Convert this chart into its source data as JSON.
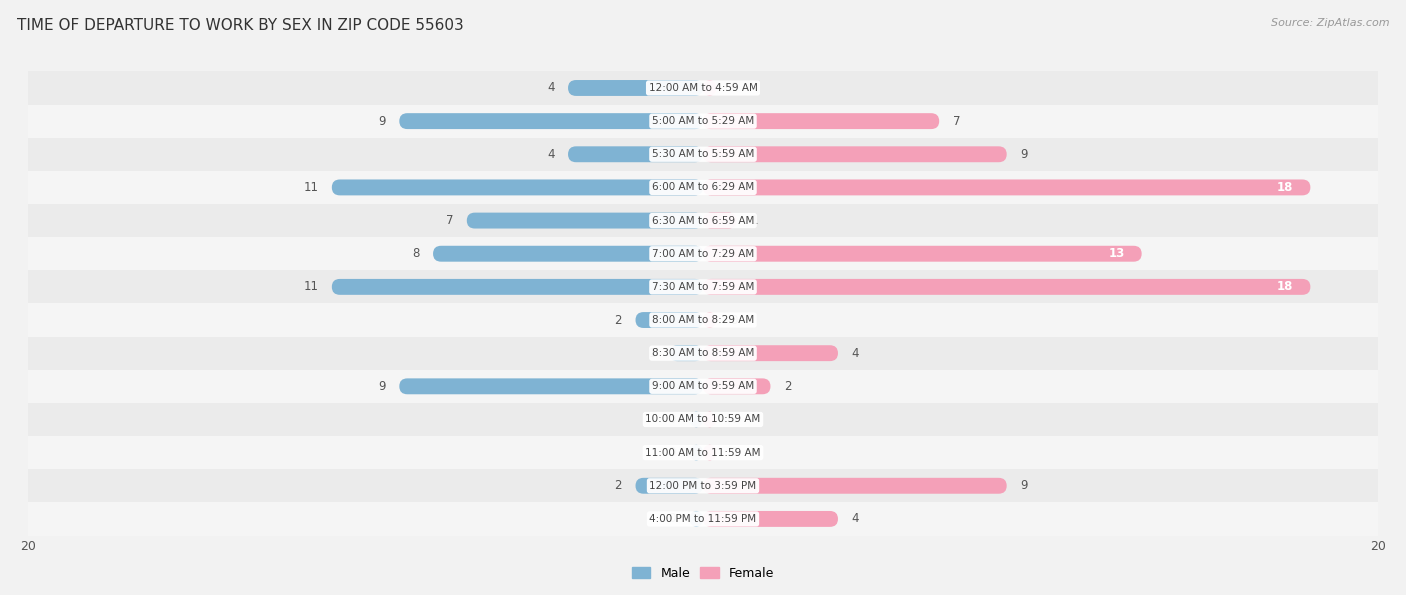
{
  "title": "TIME OF DEPARTURE TO WORK BY SEX IN ZIP CODE 55603",
  "source": "Source: ZipAtlas.com",
  "categories": [
    "12:00 AM to 4:59 AM",
    "5:00 AM to 5:29 AM",
    "5:30 AM to 5:59 AM",
    "6:00 AM to 6:29 AM",
    "6:30 AM to 6:59 AM",
    "7:00 AM to 7:29 AM",
    "7:30 AM to 7:59 AM",
    "8:00 AM to 8:29 AM",
    "8:30 AM to 8:59 AM",
    "9:00 AM to 9:59 AM",
    "10:00 AM to 10:59 AM",
    "11:00 AM to 11:59 AM",
    "12:00 PM to 3:59 PM",
    "4:00 PM to 11:59 PM"
  ],
  "male_values": [
    4,
    9,
    4,
    11,
    7,
    8,
    11,
    2,
    1,
    9,
    0,
    0,
    2,
    0
  ],
  "female_values": [
    0,
    7,
    9,
    18,
    1,
    13,
    18,
    0,
    4,
    2,
    0,
    0,
    9,
    4
  ],
  "male_color": "#7fb3d3",
  "female_color": "#f4a0b8",
  "male_color_dark": "#5a9ec9",
  "female_color_dark": "#e8527a",
  "xlim": 20,
  "row_colors": [
    "#ebebeb",
    "#f5f5f5"
  ],
  "label_color": "#555555",
  "title_color": "#333333",
  "zero_stub": 0.4
}
